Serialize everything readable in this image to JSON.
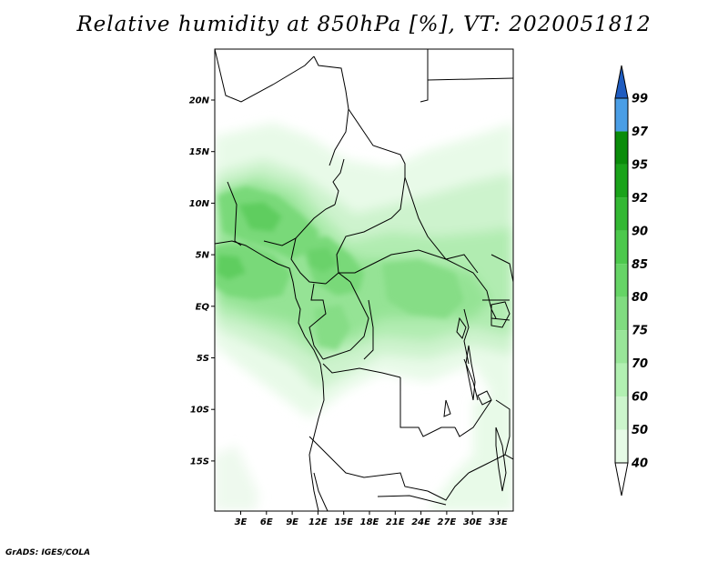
{
  "title": "Relative humidity at 850hPa [%], VT: 2020051812",
  "credit": "GrADS: IGES/COLA",
  "map": {
    "lat_labels": [
      "20N",
      "15N",
      "10N",
      "5N",
      "EQ",
      "5S",
      "10S",
      "15S"
    ],
    "lon_labels": [
      "3E",
      "6E",
      "9E",
      "12E",
      "15E",
      "18E",
      "21E",
      "24E",
      "27E",
      "30E",
      "33E"
    ]
  },
  "colorbar": {
    "levels": [
      "40",
      "50",
      "60",
      "70",
      "75",
      "80",
      "85",
      "90",
      "92",
      "95",
      "97",
      "99"
    ],
    "colors": [
      "#ffffff",
      "#e6fae6",
      "#ccf5cc",
      "#b2f0b2",
      "#99e699",
      "#80dc80",
      "#66d466",
      "#4cc84c",
      "#33b833",
      "#1aa31a",
      "#0a8c0a",
      "#4a9ee6",
      "#2f78d6",
      "#1f5cc0"
    ]
  },
  "field": {
    "description_note": "",
    "humid_colors": [
      "#e8fae8",
      "#cdf3cd",
      "#b1ecb1",
      "#95e395",
      "#79d979",
      "#5fcd5f"
    ]
  }
}
